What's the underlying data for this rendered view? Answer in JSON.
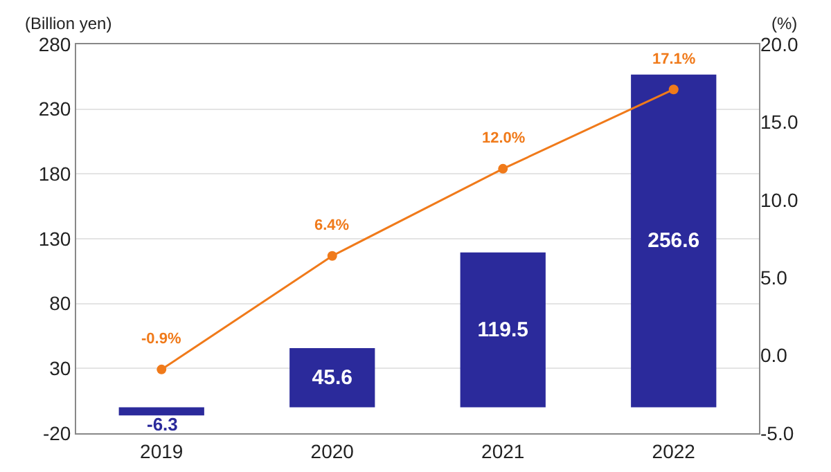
{
  "chart_data": {
    "type": "bar",
    "ylabel": "(Billion yen)",
    "y2label": "(%)",
    "categories": [
      "2019",
      "2020",
      "2021",
      "2022"
    ],
    "series": [
      {
        "color": "#2b2a9b",
        "values": [
          -6.3,
          45.6,
          119.5,
          256.6
        ]
      },
      {
        "type": "line",
        "axis": "y2",
        "color": "#f07a1a",
        "marker": "circle",
        "values": [
          -0.9,
          6.4,
          12.0,
          17.1
        ],
        "value_labels": [
          "-0.9%",
          "6.4%",
          "12.0%",
          "17.1%"
        ]
      }
    ],
    "data_labels": true,
    "ylim": [
      -20,
      280
    ],
    "yticks": [
      -20,
      30,
      80,
      130,
      180,
      230,
      280
    ],
    "y2lim": [
      -5,
      20
    ],
    "y2ticks": [
      {
        "value": -5,
        "label": "-5.0"
      },
      {
        "value": 0,
        "label": "0.0"
      },
      {
        "value": 5,
        "label": "5.0"
      },
      {
        "value": 10,
        "label": "10.0"
      },
      {
        "value": 15,
        "label": "15.0"
      },
      {
        "value": 20,
        "label": "20.0"
      }
    ],
    "grid": "y",
    "legend": false
  }
}
